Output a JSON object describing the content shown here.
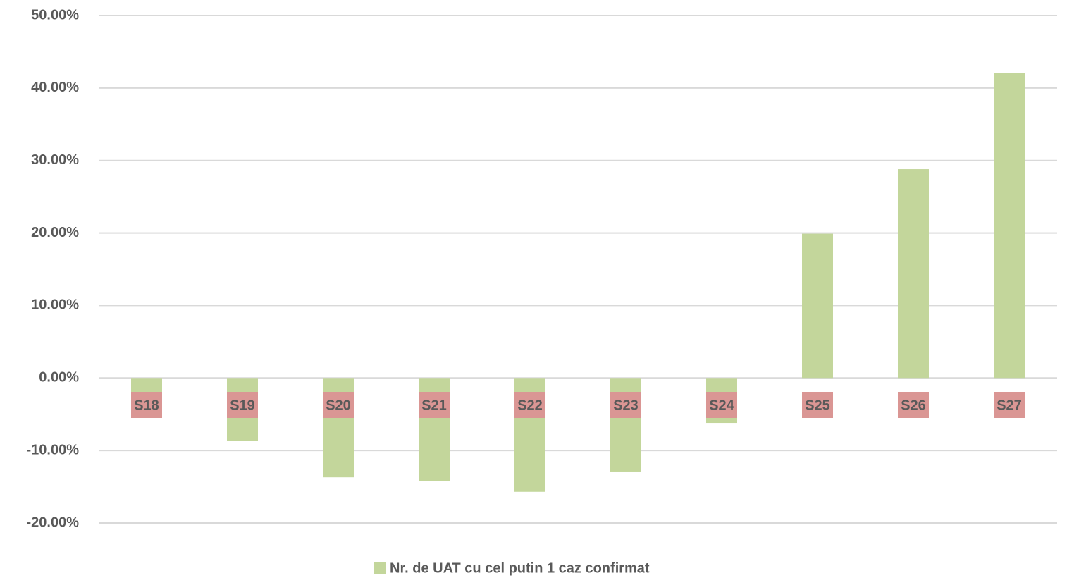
{
  "chart_data": {
    "type": "bar",
    "categories": [
      "S18",
      "S19",
      "S20",
      "S21",
      "S22",
      "S23",
      "S24",
      "S25",
      "S26",
      "S27"
    ],
    "series": [
      {
        "name": "Nr. de UAT cu cel putin 1 caz confirmat",
        "color": "#c3d69b",
        "values": [
          -3.0,
          -8.7,
          -13.7,
          -14.2,
          -15.7,
          -12.9,
          -6.2,
          19.9,
          28.8,
          42.1
        ]
      }
    ],
    "ylim": [
      -20,
      50
    ],
    "yticks": [
      {
        "value": -20,
        "label": "-20.00%"
      },
      {
        "value": -10,
        "label": "-10.00%"
      },
      {
        "value": 0,
        "label": "0.00%"
      },
      {
        "value": 10,
        "label": "10.00%"
      },
      {
        "value": 20,
        "label": "20.00%"
      },
      {
        "value": 30,
        "label": "30.00%"
      },
      {
        "value": 40,
        "label": "40.00%"
      },
      {
        "value": 50,
        "label": "50.00%"
      }
    ],
    "grid": true,
    "category_label_color": "#da9694",
    "legend": "bottom"
  }
}
